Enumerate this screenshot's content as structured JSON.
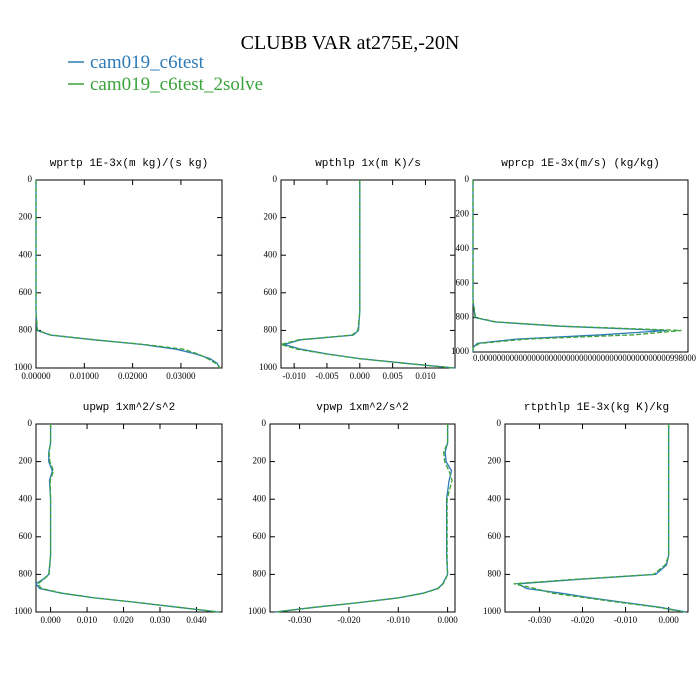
{
  "title": "CLUBB VAR at275E,-20N",
  "legend": [
    {
      "name": "cam019_c6test",
      "color": "#2c7bb6",
      "dashed": false
    },
    {
      "name": "cam019_c6test_2solve",
      "color": "#3aa33a",
      "dashed": true
    }
  ],
  "chart_data": [
    {
      "type": "line",
      "title": "wprtp  1E-3x(m kg)/(s kg)",
      "y": [
        0,
        100,
        150,
        200,
        250,
        300,
        400,
        500,
        600,
        700,
        800,
        825,
        850,
        875,
        900,
        925,
        950,
        975,
        1000
      ],
      "series": [
        {
          "values": [
            0,
            0,
            0,
            0,
            0,
            0,
            0,
            0,
            0,
            0,
            0.0002,
            0.003,
            0.012,
            0.022,
            0.029,
            0.033,
            0.036,
            0.0375,
            0.038
          ]
        },
        {
          "values": [
            0,
            0,
            0,
            0,
            0,
            0,
            0,
            0,
            0,
            0,
            0.0003,
            0.0032,
            0.0122,
            0.0225,
            0.0305,
            0.0335,
            0.0355,
            0.0372,
            0.0382
          ]
        }
      ],
      "xlim": [
        0,
        0.0385
      ],
      "xticks": [
        {
          "value": 0,
          "label": "0.00000"
        },
        {
          "value": 0.01,
          "label": "0.01000"
        },
        {
          "value": 0.02,
          "label": "0.02000"
        },
        {
          "value": 0.03,
          "label": "0.03000"
        }
      ],
      "ylim": [
        0,
        1000
      ],
      "yticks": [
        0,
        200,
        400,
        600,
        800,
        1000
      ],
      "y_inverted": true
    },
    {
      "type": "line",
      "title": "wpthlp  1x(m K)/s",
      "y": [
        0,
        100,
        150,
        200,
        250,
        300,
        400,
        500,
        600,
        700,
        800,
        825,
        850,
        875,
        900,
        925,
        950,
        975,
        1000
      ],
      "series": [
        {
          "values": [
            0,
            0,
            0,
            0,
            0,
            0,
            0,
            0,
            0,
            0,
            -0.0002,
            -0.001,
            -0.009,
            -0.0115,
            -0.009,
            -0.005,
            0,
            0.007,
            0.0145
          ]
        },
        {
          "values": [
            0,
            0,
            0,
            0,
            0,
            0,
            0,
            0,
            0,
            0,
            -0.0003,
            -0.0012,
            -0.0093,
            -0.012,
            -0.0095,
            -0.0052,
            -0.0002,
            0.0068,
            0.0143
          ]
        }
      ],
      "xlim": [
        -0.012,
        0.0145
      ],
      "xticks": [
        {
          "value": -0.01,
          "label": "-0.010"
        },
        {
          "value": -0.005,
          "label": "-0.005"
        },
        {
          "value": 0,
          "label": "0.000"
        },
        {
          "value": 0.005,
          "label": "0.005"
        },
        {
          "value": 0.01,
          "label": "0.010"
        }
      ],
      "ylim": [
        0,
        1000
      ],
      "yticks": [
        0,
        200,
        400,
        600,
        800,
        1000
      ],
      "y_inverted": true
    },
    {
      "type": "line",
      "title": "wprcp  1E-3x(m/s) (kg/kg)",
      "y": [
        0,
        100,
        150,
        200,
        250,
        300,
        400,
        500,
        600,
        700,
        800,
        825,
        850,
        875,
        900,
        925,
        950,
        975,
        1000
      ],
      "series": [
        {
          "values": [
            0,
            0,
            0,
            0,
            0,
            0,
            0,
            0,
            0,
            0,
            0.01,
            0.1,
            0.4,
            0.9,
            0.6,
            0.2,
            0.02,
            0,
            0
          ]
        },
        {
          "values": [
            0,
            0,
            0,
            0,
            0,
            0,
            0,
            0,
            0,
            0,
            0.012,
            0.11,
            0.42,
            0.97,
            0.75,
            0.25,
            0.03,
            0,
            0
          ]
        }
      ],
      "xlim": [
        0,
        1
      ],
      "x_axis_text": "0.00000000000000000000000000000000000000000000998000",
      "ylim": [
        0,
        1000
      ],
      "yticks": [
        0,
        200,
        400,
        600,
        800,
        1000
      ],
      "y_inverted": true
    },
    {
      "type": "line",
      "title": "upwp  1xm^2/s^2",
      "y": [
        0,
        100,
        150,
        200,
        250,
        300,
        400,
        500,
        600,
        700,
        800,
        825,
        850,
        875,
        900,
        925,
        950,
        975,
        1000
      ],
      "series": [
        {
          "values": [
            0,
            0,
            -0.0005,
            -0.0005,
            0.0005,
            -0.0003,
            0,
            0,
            0,
            0,
            -0.0005,
            -0.002,
            -0.004,
            -0.003,
            0.003,
            0.012,
            0.024,
            0.035,
            0.046
          ]
        },
        {
          "values": [
            0,
            0,
            -0.0004,
            -0.0002,
            0.0008,
            -0.0001,
            0,
            0,
            0,
            0,
            -0.0004,
            -0.0018,
            -0.0035,
            -0.0025,
            0.0033,
            0.0122,
            0.0242,
            0.0352,
            0.0462
          ]
        }
      ],
      "xlim": [
        -0.004,
        0.047
      ],
      "xticks": [
        {
          "value": 0,
          "label": "0.000"
        },
        {
          "value": 0.01,
          "label": "0.010"
        },
        {
          "value": 0.02,
          "label": "0.020"
        },
        {
          "value": 0.03,
          "label": "0.030"
        },
        {
          "value": 0.04,
          "label": "0.040"
        }
      ],
      "ylim": [
        0,
        1000
      ],
      "yticks": [
        0,
        200,
        400,
        600,
        800,
        1000
      ],
      "y_inverted": true
    },
    {
      "type": "line",
      "title": "vpwp  1xm^2/s^2",
      "y": [
        0,
        100,
        150,
        200,
        250,
        300,
        400,
        500,
        600,
        700,
        800,
        825,
        850,
        875,
        900,
        925,
        950,
        975,
        1000
      ],
      "series": [
        {
          "values": [
            0,
            0,
            -0.0005,
            -0.0003,
            0.0008,
            0.0003,
            -0.0002,
            -0.0002,
            -0.0002,
            -0.0002,
            0,
            -0.0005,
            -0.001,
            -0.002,
            -0.005,
            -0.01,
            -0.018,
            -0.027,
            -0.035
          ]
        },
        {
          "values": [
            0,
            0,
            -0.0008,
            -0.0006,
            0.0003,
            0.0009,
            -0.0001,
            -0.0001,
            -0.0001,
            -0.0001,
            0,
            -0.0004,
            -0.0009,
            -0.0019,
            -0.0049,
            -0.0099,
            -0.0179,
            -0.0269,
            -0.0349
          ]
        }
      ],
      "xlim": [
        -0.036,
        0.0015
      ],
      "xticks": [
        {
          "value": -0.03,
          "label": "-0.030"
        },
        {
          "value": -0.02,
          "label": "-0.020"
        },
        {
          "value": -0.01,
          "label": "-0.010"
        },
        {
          "value": 0,
          "label": "0.000"
        }
      ],
      "ylim": [
        0,
        1000
      ],
      "yticks": [
        0,
        200,
        400,
        600,
        800,
        1000
      ],
      "y_inverted": true
    },
    {
      "type": "line",
      "title": "rtpthlp  1E-3x(kg K)/kg",
      "y": [
        0,
        100,
        150,
        200,
        250,
        300,
        400,
        500,
        600,
        700,
        750,
        800,
        825,
        850,
        875,
        900,
        925,
        950,
        975,
        1000
      ],
      "series": [
        {
          "values": [
            0,
            0,
            0,
            0,
            0,
            0,
            0,
            0,
            0,
            0,
            -0.0005,
            -0.003,
            -0.02,
            -0.035,
            -0.033,
            -0.025,
            -0.018,
            -0.01,
            -0.002,
            0.004
          ]
        },
        {
          "values": [
            0,
            0,
            0,
            0,
            0,
            0,
            0,
            0,
            0,
            0,
            -0.0008,
            -0.0035,
            -0.021,
            -0.036,
            -0.031,
            -0.027,
            -0.019,
            -0.011,
            -0.0025,
            0.0038
          ]
        }
      ],
      "xlim": [
        -0.038,
        0.0045
      ],
      "xticks": [
        {
          "value": -0.03,
          "label": "-0.030"
        },
        {
          "value": -0.02,
          "label": "-0.020"
        },
        {
          "value": -0.01,
          "label": "-0.010"
        },
        {
          "value": 0,
          "label": "0.000"
        }
      ],
      "ylim": [
        0,
        1000
      ],
      "yticks": [
        0,
        200,
        400,
        600,
        800,
        1000
      ],
      "y_inverted": true
    }
  ]
}
